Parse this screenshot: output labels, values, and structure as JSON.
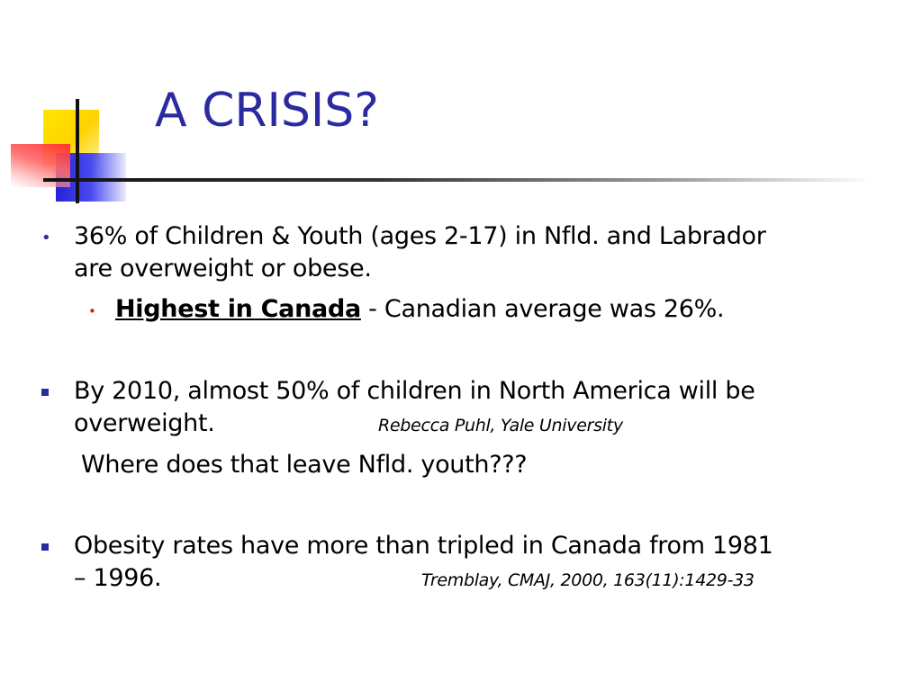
{
  "slide": {
    "title": "A CRISIS?",
    "colors": {
      "title": "#2b2ba0",
      "bullet": "#2b2ba0",
      "text": "#000000",
      "deco_yellow": "#ffe600",
      "deco_blue": "#2323d8",
      "deco_red": "#ff2a2a"
    },
    "bullets": [
      {
        "marker": "•",
        "line1": "36% of Children & Youth (ages 2-17) in Nfld.  and Labrador",
        "line2": "are overweight or obese.",
        "sub": {
          "marker": "•",
          "emphasis": "Highest in Canada",
          "rest": " - Canadian average was 26%."
        }
      },
      {
        "marker": "square",
        "line1": "By 2010, almost 50% of children in North America will be",
        "line2": "overweight.",
        "citation": "Rebecca Puhl, Yale University",
        "followup": "Where does that leave Nfld. youth???"
      },
      {
        "marker": "square",
        "line1": "Obesity rates have more than tripled in Canada from 1981",
        "line2": "– 1996.",
        "citation": "Tremblay, CMAJ, 2000, 163(11):1429-33"
      }
    ]
  }
}
